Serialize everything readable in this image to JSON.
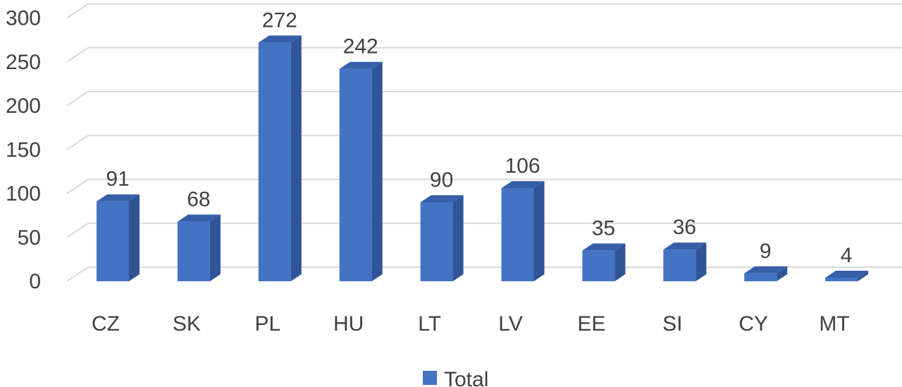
{
  "chart_data": {
    "type": "bar",
    "categories": [
      "CZ",
      "SK",
      "PL",
      "HU",
      "LT",
      "LV",
      "EE",
      "SI",
      "CY",
      "MT"
    ],
    "series": [
      {
        "name": "Total",
        "values": [
          91,
          68,
          272,
          242,
          90,
          106,
          35,
          36,
          9,
          4
        ]
      }
    ],
    "ylim": [
      0,
      300
    ],
    "yticks": [
      0,
      50,
      100,
      150,
      200,
      250,
      300
    ],
    "grid": true,
    "legend": "bottom-center",
    "style": "3d-column",
    "colors": {
      "bar_front": "#4472C4",
      "bar_side": "#2F5597",
      "bar_top": "#3560A8",
      "grid": "#D9D9D9",
      "text": "#404040"
    }
  }
}
